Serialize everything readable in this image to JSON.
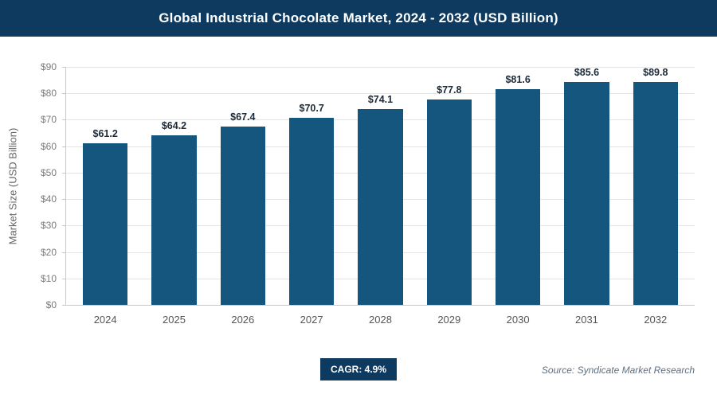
{
  "header": {
    "title": "Global Industrial Chocolate Market, 2024 - 2032 (USD Billion)"
  },
  "chart_data": {
    "type": "bar",
    "title": "Global Industrial Chocolate Market, 2024 - 2032 (USD Billion)",
    "categories": [
      "2024",
      "2025",
      "2026",
      "2027",
      "2028",
      "2029",
      "2030",
      "2031",
      "2032"
    ],
    "values": [
      61.2,
      64.2,
      67.4,
      70.7,
      74.1,
      77.8,
      81.6,
      85.6,
      89.8
    ],
    "value_labels": [
      "$61.2",
      "$64.2",
      "$67.4",
      "$70.7",
      "$74.1",
      "$77.8",
      "$81.6",
      "$85.6",
      "$89.8"
    ],
    "xlabel": "",
    "ylabel": "Market Size (USD Billion)",
    "ylim": [
      0,
      90
    ],
    "ytick_step": 10,
    "ytick_prefix": "$",
    "grid": true,
    "legend": "none"
  },
  "footer": {
    "cagr": "CAGR: 4.9%",
    "source": "Source: Syndicate Market Research"
  },
  "colors": {
    "header_bg": "#0e3a5f",
    "bar": "#15567e",
    "value_label": "#1d2a38",
    "badge_bg": "#0e3a5f",
    "source_text": "#5f6f80"
  }
}
